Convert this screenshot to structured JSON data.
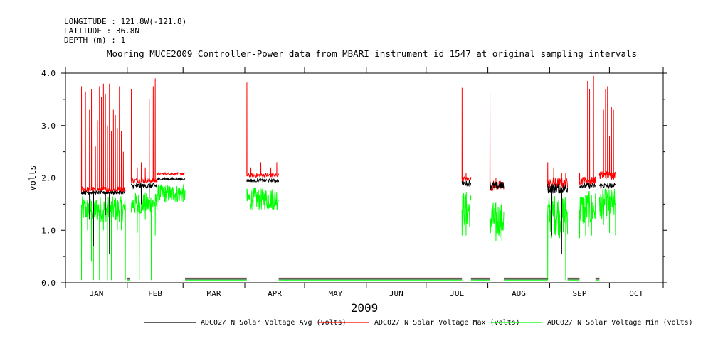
{
  "header": {
    "longitude": "LONGITUDE : 121.8W(-121.8)",
    "latitude": "LATITUDE : 36.8N",
    "depth": "DEPTH (m) : 1",
    "title": "Mooring MUCE2009 Controller-Power data from MBARI instrument id 1547 at original sampling intervals"
  },
  "chart_data": {
    "type": "line",
    "title": "Mooring MUCE2009 Controller-Power data from MBARI instrument id 1547 at original sampling intervals",
    "xlabel": "2009",
    "ylabel": "volts",
    "ylim": [
      0.0,
      4.0
    ],
    "yticks": [
      "0.0",
      "1.0",
      "2.0",
      "3.0",
      "4.0"
    ],
    "xlim": [
      0,
      300
    ],
    "month_starts": [
      0,
      31,
      59,
      90,
      120,
      151,
      181,
      212,
      243,
      273,
      300
    ],
    "month_labels": [
      "JAN",
      "FEB",
      "MAR",
      "APR",
      "MAY",
      "JUN",
      "JUL",
      "AUG",
      "SEP",
      "OCT"
    ],
    "legend_position": "bottom",
    "series": [
      {
        "name": "ADC02/ N Solar Voltage Avg (volts)",
        "color": "#000000",
        "segments": [
          {
            "x": [
              8,
              30
            ],
            "y": 1.72,
            "noise": 0.03,
            "spikes": [
              [
                12,
                1.2
              ],
              [
                14,
                0.7
              ],
              [
                20,
                1.3
              ],
              [
                22,
                0.55
              ]
            ]
          },
          {
            "x": [
              31,
              32.5
            ],
            "y": 0.07,
            "noise": 0
          },
          {
            "x": [
              33,
              46
            ],
            "y": 1.85,
            "noise": 0.05,
            "spikes": [
              [
                38,
                1.5
              ],
              [
                42,
                1.6
              ]
            ]
          },
          {
            "x": [
              46,
              60
            ],
            "y": 1.98,
            "noise": 0.02
          },
          {
            "x": [
              60,
              91
            ],
            "y": 0.07,
            "noise": 0
          },
          {
            "x": [
              91,
              107
            ],
            "y": 1.95,
            "noise": 0.03
          },
          {
            "x": [
              107,
              199
            ],
            "y": 0.07,
            "noise": 0
          },
          {
            "x": [
              199,
              203.5
            ],
            "y": 1.9,
            "noise": 0.05
          },
          {
            "x": [
              203.5,
              213
            ],
            "y": 0.07,
            "noise": 0
          },
          {
            "x": [
              213,
              220
            ],
            "y": 1.85,
            "noise": 0.08
          },
          {
            "x": [
              220,
              242
            ],
            "y": 0.07,
            "noise": 0
          },
          {
            "x": [
              242,
              252
            ],
            "y": 1.8,
            "noise": 0.1,
            "spikes": [
              [
                244,
                0.9
              ],
              [
                249,
                0.55
              ]
            ]
          },
          {
            "x": [
              252,
              258
            ],
            "y": 0.07,
            "noise": 0
          },
          {
            "x": [
              258,
              266
            ],
            "y": 1.85,
            "noise": 0.05
          },
          {
            "x": [
              266,
              268
            ],
            "y": 0.07,
            "noise": 0
          },
          {
            "x": [
              268,
              276
            ],
            "y": 1.85,
            "noise": 0.05
          }
        ]
      },
      {
        "name": "ADC02/ N Solar Voltage Max (volts)",
        "color": "#ff0000",
        "segments": [
          {
            "x": [
              8,
              30
            ],
            "y": 1.78,
            "noise": 0.06,
            "spikes": [
              [
                8,
                3.75
              ],
              [
                10,
                3.65
              ],
              [
                12,
                3.3
              ],
              [
                13,
                3.7
              ],
              [
                15,
                2.6
              ],
              [
                16,
                3.1
              ],
              [
                17,
                3.75
              ],
              [
                18,
                3.55
              ],
              [
                19,
                3.8
              ],
              [
                20,
                3.6
              ],
              [
                21,
                3.0
              ],
              [
                22,
                3.8
              ],
              [
                23,
                2.9
              ],
              [
                24,
                3.3
              ],
              [
                25,
                3.2
              ],
              [
                26,
                2.95
              ],
              [
                27,
                3.75
              ],
              [
                28,
                2.9
              ],
              [
                29,
                2.5
              ]
            ]
          },
          {
            "x": [
              31,
              32.5
            ],
            "y": 0.09,
            "noise": 0
          },
          {
            "x": [
              33,
              46
            ],
            "y": 1.95,
            "noise": 0.05,
            "spikes": [
              [
                33,
                3.7
              ],
              [
                36,
                2.2
              ],
              [
                38,
                2.3
              ],
              [
                40,
                2.2
              ],
              [
                42,
                3.5
              ],
              [
                44,
                3.75
              ],
              [
                45,
                3.9
              ]
            ]
          },
          {
            "x": [
              46,
              60
            ],
            "y": 2.08,
            "noise": 0.02,
            "spikes": [
              [
                46,
                2.1
              ]
            ]
          },
          {
            "x": [
              60,
              91
            ],
            "y": 0.09,
            "noise": 0
          },
          {
            "x": [
              91,
              107
            ],
            "y": 2.05,
            "noise": 0.04,
            "spikes": [
              [
                91,
                3.82
              ],
              [
                93,
                2.2
              ],
              [
                98,
                2.3
              ],
              [
                103,
                2.2
              ],
              [
                106,
                2.3
              ]
            ]
          },
          {
            "x": [
              107,
              199
            ],
            "y": 0.09,
            "noise": 0
          },
          {
            "x": [
              199,
              203.5
            ],
            "y": 1.98,
            "noise": 0.05,
            "spikes": [
              [
                199,
                3.72
              ],
              [
                201,
                2.1
              ]
            ]
          },
          {
            "x": [
              203.5,
              213
            ],
            "y": 0.09,
            "noise": 0
          },
          {
            "x": [
              213,
              220
            ],
            "y": 1.85,
            "noise": 0.1,
            "spikes": [
              [
                213,
                3.65
              ],
              [
                216,
                2.0
              ]
            ]
          },
          {
            "x": [
              220,
              242
            ],
            "y": 0.09,
            "noise": 0
          },
          {
            "x": [
              242,
              252
            ],
            "y": 1.9,
            "noise": 0.1,
            "spikes": [
              [
                242,
                2.3
              ],
              [
                245,
                2.2
              ],
              [
                249,
                2.1
              ],
              [
                251,
                2.1
              ]
            ]
          },
          {
            "x": [
              252,
              258
            ],
            "y": 0.09,
            "noise": 0
          },
          {
            "x": [
              258,
              266
            ],
            "y": 1.95,
            "noise": 0.08,
            "spikes": [
              [
                258,
                2.1
              ],
              [
                262,
                3.85
              ],
              [
                263,
                3.7
              ],
              [
                265,
                3.95
              ]
            ]
          },
          {
            "x": [
              266,
              268
            ],
            "y": 0.09,
            "noise": 0
          },
          {
            "x": [
              268,
              276
            ],
            "y": 2.05,
            "noise": 0.08,
            "spikes": [
              [
                268,
                2.1
              ],
              [
                270,
                3.3
              ],
              [
                271,
                3.7
              ],
              [
                272,
                3.75
              ],
              [
                273,
                2.8
              ],
              [
                274,
                3.35
              ],
              [
                275,
                3.3
              ]
            ]
          }
        ]
      },
      {
        "name": "ADC02/ N Solar Voltage Min (volts)",
        "color": "#00ff00",
        "segments": [
          {
            "x": [
              8,
              30
            ],
            "y": 1.4,
            "noise": 0.25,
            "spikes": [
              [
                8,
                0.05
              ],
              [
                11,
                1.0
              ],
              [
                13,
                0.4
              ],
              [
                14,
                0.05
              ],
              [
                17,
                0.05
              ],
              [
                19,
                1.0
              ],
              [
                21,
                0.05
              ],
              [
                23,
                0.05
              ],
              [
                26,
                1.0
              ],
              [
                28,
                1.0
              ],
              [
                30,
                0.05
              ]
            ]
          },
          {
            "x": [
              31,
              32.5
            ],
            "y": 0.05,
            "noise": 0
          },
          {
            "x": [
              33,
              46
            ],
            "y": 1.5,
            "noise": 0.22,
            "spikes": [
              [
                36,
                0.95
              ],
              [
                37,
                0.05
              ],
              [
                40,
                1.2
              ],
              [
                43,
                0.05
              ],
              [
                45,
                0.9
              ]
            ]
          },
          {
            "x": [
              46,
              60
            ],
            "y": 1.7,
            "noise": 0.18
          },
          {
            "x": [
              60,
              91
            ],
            "y": 0.05,
            "noise": 0
          },
          {
            "x": [
              91,
              107
            ],
            "y": 1.6,
            "noise": 0.22
          },
          {
            "x": [
              107,
              199
            ],
            "y": 0.05,
            "noise": 0
          },
          {
            "x": [
              199,
              203.5
            ],
            "y": 1.4,
            "noise": 0.35,
            "spikes": [
              [
                199,
                0.9
              ],
              [
                201,
                0.9
              ]
            ]
          },
          {
            "x": [
              203.5,
              213
            ],
            "y": 0.05,
            "noise": 0
          },
          {
            "x": [
              213,
              220
            ],
            "y": 1.2,
            "noise": 0.35,
            "spikes": [
              [
                213,
                0.8
              ],
              [
                216,
                0.8
              ],
              [
                219,
                0.8
              ]
            ]
          },
          {
            "x": [
              220,
              242
            ],
            "y": 0.05,
            "noise": 0
          },
          {
            "x": [
              242,
              252
            ],
            "y": 1.3,
            "noise": 0.4,
            "spikes": [
              [
                242,
                0.05
              ],
              [
                244,
                0.85
              ],
              [
                248,
                0.85
              ],
              [
                251,
                0.05
              ]
            ]
          },
          {
            "x": [
              252,
              258
            ],
            "y": 0.05,
            "noise": 0
          },
          {
            "x": [
              258,
              266
            ],
            "y": 1.4,
            "noise": 0.35,
            "spikes": [
              [
                258,
                0.85
              ],
              [
                261,
                0.9
              ],
              [
                264,
                0.9
              ]
            ]
          },
          {
            "x": [
              266,
              268
            ],
            "y": 0.05,
            "noise": 0
          },
          {
            "x": [
              268,
              276
            ],
            "y": 1.5,
            "noise": 0.3,
            "spikes": [
              [
                270,
                1.1
              ],
              [
                273,
                0.95
              ],
              [
                276,
                0.9
              ]
            ]
          }
        ]
      }
    ]
  }
}
